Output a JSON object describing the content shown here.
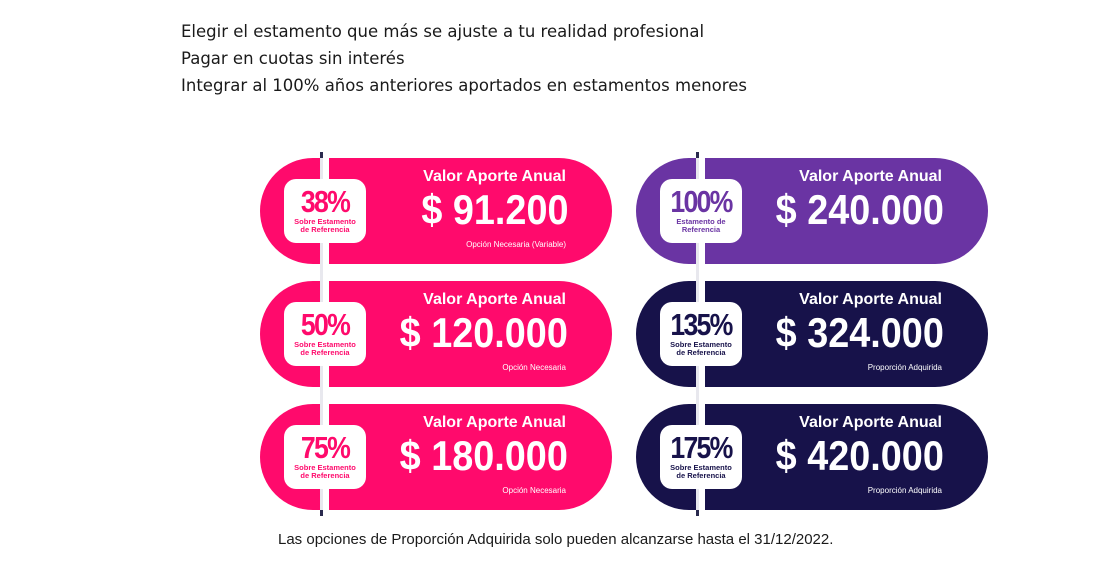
{
  "intro": {
    "lines": [
      "Elegir el estamento que más se ajuste a tu realidad profesional",
      "Pagar en cuotas sin interés",
      "Integrar al 100% años anteriores aportados en estamentos menores"
    ]
  },
  "colors": {
    "pink": "#ff0a6c",
    "purple": "#6a34a3",
    "navy": "#17124a"
  },
  "cards": {
    "left": [
      {
        "percent": "38%",
        "percent_caption": "Sobre Estamento de Referencia",
        "title": "Valor Aporte Anual",
        "amount": "$ 91.200",
        "note": "Opción Necesaria (Variable)",
        "color": "pink"
      },
      {
        "percent": "50%",
        "percent_caption": "Sobre Estamento de Referencia",
        "title": "Valor Aporte Anual",
        "amount": "$ 120.000",
        "note": "Opción Necesaria",
        "color": "pink"
      },
      {
        "percent": "75%",
        "percent_caption": "Sobre Estamento de Referencia",
        "title": "Valor Aporte Anual",
        "amount": "$ 180.000",
        "note": "Opción Necesaria",
        "color": "pink"
      }
    ],
    "right": [
      {
        "percent": "100%",
        "percent_caption": "Estamento de Referencia",
        "title": "Valor Aporte Anual",
        "amount": "$ 240.000",
        "note": "",
        "color": "purple"
      },
      {
        "percent": "135%",
        "percent_caption": "Sobre Estamento de Referencia",
        "title": "Valor Aporte Anual",
        "amount": "$ 324.000",
        "note": "Proporción Adquirida",
        "color": "navy"
      },
      {
        "percent": "175%",
        "percent_caption": "Sobre Estamento de Referencia",
        "title": "Valor Aporte Anual",
        "amount": "$ 420.000",
        "note": "Proporción Adquirida",
        "color": "navy"
      }
    ]
  },
  "footer": {
    "text": "Las opciones de Proporción Adquirida solo pueden alcanzarse hasta el 31/12/2022."
  }
}
